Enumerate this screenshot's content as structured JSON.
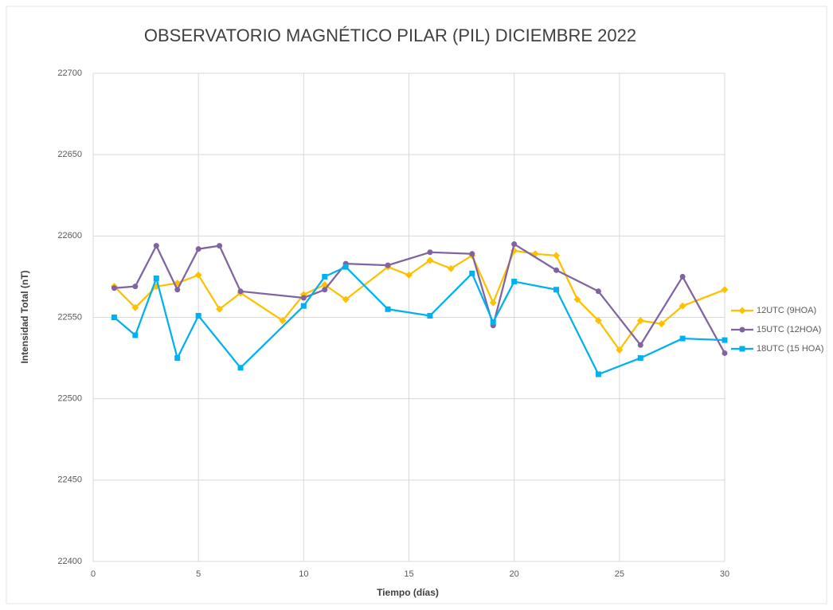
{
  "chart_data": {
    "type": "line",
    "title": "OBSERVATORIO MAGNÉTICO PILAR (PIL) DICIEMBRE 2022",
    "x_label": "Tiempo (días)",
    "y_label": "Intensidad Total (nT)",
    "xlim": [
      0,
      30
    ],
    "xticks": [
      0,
      5,
      10,
      15,
      20,
      25,
      30
    ],
    "ylim": [
      22400,
      22700
    ],
    "yticks": [
      22400,
      22450,
      22500,
      22550,
      22600,
      22650,
      22700
    ],
    "grid": true,
    "legend": "right",
    "series": [
      {
        "name": "12UTC (9HOA)",
        "color": "#ffc000",
        "marker": "diamond",
        "x": [
          1,
          2,
          3,
          4,
          5,
          6,
          7,
          9,
          10,
          11,
          12,
          14,
          15,
          16,
          17,
          18,
          19,
          20,
          21,
          22,
          23,
          24,
          25,
          26,
          27,
          28,
          30
        ],
        "values": [
          22569,
          22556,
          22569,
          22571,
          22576,
          22555,
          22565,
          22548,
          22564,
          22570,
          22561,
          22581,
          22576,
          22585,
          22580,
          22588,
          22559,
          22591,
          22589,
          22588,
          22561,
          22548,
          22530,
          22548,
          22546,
          22557,
          22567
        ]
      },
      {
        "name": "15UTC (12HOA)",
        "color": "#8064a2",
        "marker": "circle",
        "x": [
          1,
          2,
          3,
          4,
          5,
          6,
          7,
          10,
          11,
          12,
          14,
          16,
          18,
          19,
          20,
          22,
          24,
          26,
          28,
          30
        ],
        "values": [
          22568,
          22569,
          22594,
          22567,
          22592,
          22594,
          22566,
          22562,
          22567,
          22583,
          22582,
          22590,
          22589,
          22545,
          22595,
          22579,
          22566,
          22533,
          22575,
          22528
        ]
      },
      {
        "name": "18UTC (15 HOA)",
        "color": "#00b0f0",
        "marker": "square",
        "x": [
          1,
          2,
          3,
          4,
          5,
          7,
          10,
          11,
          12,
          14,
          16,
          18,
          19,
          20,
          22,
          24,
          26,
          28,
          30
        ],
        "values": [
          22550,
          22539,
          22574,
          22525,
          22551,
          22519,
          22557,
          22575,
          22581,
          22555,
          22551,
          22577,
          22547,
          22572,
          22567,
          22515,
          22525,
          22537,
          22536
        ]
      }
    ]
  }
}
